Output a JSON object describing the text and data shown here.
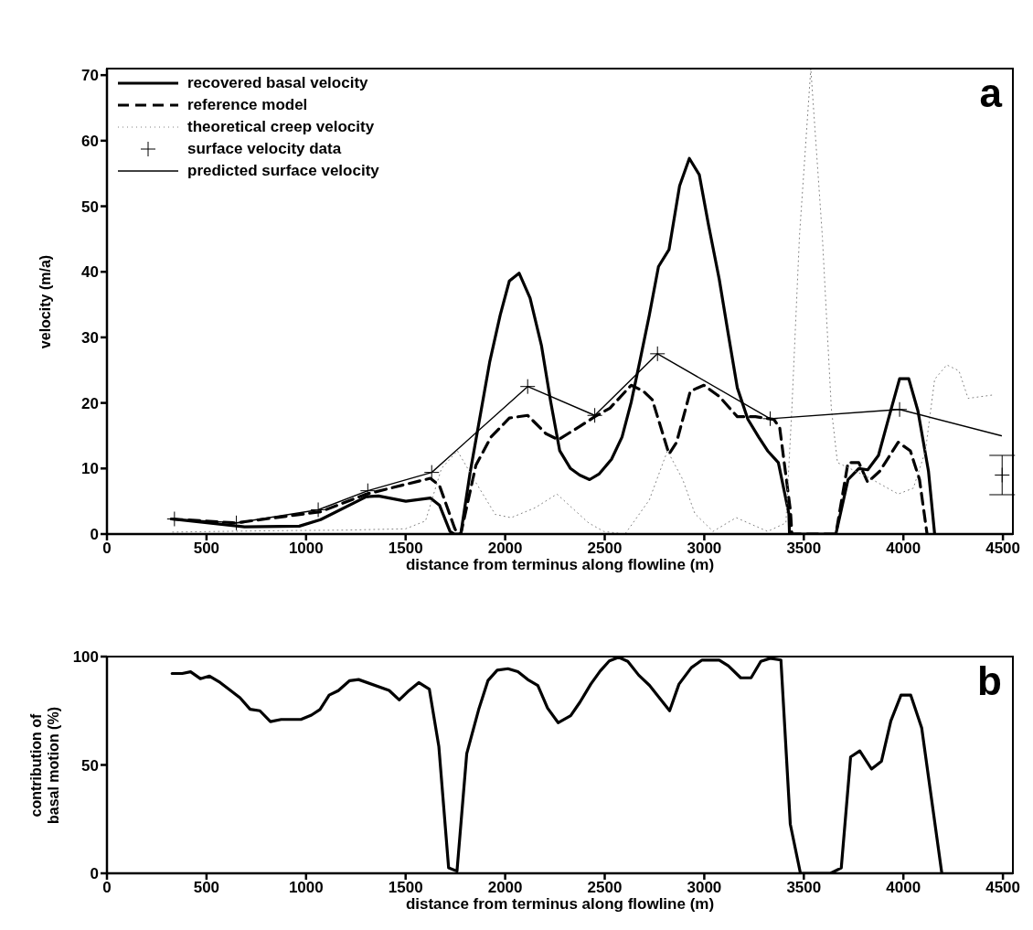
{
  "chart_data": [
    {
      "type": "line",
      "xlabel": "distance from terminus along flowline (m)",
      "ylabel": "velocity (m/a)",
      "xlim": [
        0,
        4550
      ],
      "xticks": [
        0,
        500,
        1000,
        1500,
        2000,
        2500,
        3000,
        3500,
        4000,
        4500
      ],
      "ylim": [
        0,
        71
      ],
      "yticks": [
        0,
        10,
        20,
        30,
        40,
        50,
        60,
        70
      ],
      "legend": "top left",
      "annotations": [
        "a"
      ],
      "series": [
        {
          "name": "recovered basal velocity",
          "color": "#000000",
          "line_style": "solid",
          "x": [
            324,
            691,
            966,
            1073,
            1303,
            1364,
            1501,
            1624,
            1670,
            1723,
            1745,
            1777,
            1823,
            1922,
            1975,
            2021,
            2070,
            2125,
            2182,
            2228,
            2274,
            2328,
            2374,
            2424,
            2473,
            2534,
            2587,
            2633,
            2678,
            2724,
            2770,
            2823,
            2876,
            2925,
            2975,
            3021,
            3075,
            3120,
            3166,
            3219,
            3273,
            3318,
            3372,
            3425,
            3428,
            3661,
            3722,
            3776,
            3821,
            3875,
            3928,
            3981,
            4027,
            4073,
            4126,
            4157
          ],
          "values": [
            2.3,
            1.1,
            1.2,
            2.2,
            5.7,
            5.8,
            5.0,
            5.5,
            4.4,
            0.4,
            0,
            0,
            9.2,
            26.2,
            33.4,
            38.6,
            39.8,
            36.0,
            28.8,
            20.3,
            12.7,
            10.0,
            9.0,
            8.3,
            9.2,
            11.4,
            14.8,
            20.1,
            26.6,
            33.4,
            40.8,
            43.4,
            53.1,
            57.3,
            54.8,
            47.2,
            38.9,
            30.6,
            22.3,
            17.5,
            14.8,
            12.7,
            10.9,
            3.1,
            0,
            0,
            8.3,
            10.0,
            9.8,
            12.0,
            17.9,
            23.7,
            23.7,
            18.8,
            9.6,
            0
          ]
        },
        {
          "name": "reference model",
          "color": "#000000",
          "line_style": "dashed",
          "x": [
            324,
            645,
            1073,
            1303,
            1624,
            1670,
            1746,
            1761,
            1777,
            1853,
            1929,
            2021,
            2113,
            2205,
            2267,
            2374,
            2450,
            2526,
            2633,
            2694,
            2739,
            2823,
            2861,
            2930,
            2998,
            3075,
            3166,
            3257,
            3349,
            3379,
            3433,
            3440,
            3661,
            3722,
            3776,
            3821,
            3882,
            3974,
            4035,
            4081,
            4119
          ],
          "values": [
            2.3,
            1.7,
            3.4,
            6.1,
            8.5,
            7.4,
            0.9,
            0,
            0,
            10.5,
            14.8,
            17.7,
            18.1,
            15.3,
            14.4,
            16.4,
            17.9,
            19.2,
            22.7,
            21.8,
            20.5,
            12.2,
            14.0,
            21.8,
            22.7,
            21.0,
            17.9,
            17.9,
            17.5,
            16.2,
            3.5,
            0,
            0,
            10.9,
            10.9,
            7.9,
            9.6,
            14.0,
            12.7,
            8.3,
            0
          ]
        },
        {
          "name": "theoretical creep velocity",
          "color": "#808080",
          "line_style": "dotted",
          "x": [
            330,
            800,
            1200,
            1500,
            1600,
            1680,
            1760,
            1850,
            1950,
            2030,
            2150,
            2260,
            2419,
            2495,
            2602,
            2724,
            2815,
            2892,
            2953,
            3044,
            3160,
            3318,
            3410,
            3440,
            3478,
            3535,
            3593,
            3638,
            3669,
            3821,
            3974,
            4050,
            4111,
            4157,
            4218,
            4279,
            4325,
            4446
          ],
          "values": [
            0.3,
            0.5,
            0.6,
            0.8,
            2,
            10,
            12.7,
            8,
            3,
            2.5,
            4,
            6.1,
            1.7,
            0.4,
            0,
            5.2,
            12.7,
            8.3,
            3.1,
            0.4,
            2.5,
            0.4,
            1.7,
            19.2,
            45.4,
            71,
            45.4,
            19.2,
            10.9,
            8.7,
            6.1,
            7,
            12.7,
            23.6,
            25.8,
            24.9,
            20.7,
            21.2
          ]
        },
        {
          "name": "surface velocity data",
          "type": "scatter",
          "color": "#000000",
          "marker": "cross",
          "x": [
            339,
            650,
            1061,
            1310,
            1631,
            2113,
            2450,
            2765,
            3331,
            3981
          ],
          "values": [
            2.3,
            1.7,
            3.7,
            6.6,
            9.4,
            22.5,
            18.1,
            27.5,
            17.6,
            19.0
          ]
        },
        {
          "name": "predicted surface velocity",
          "color": "#000000",
          "line_style": "solid",
          "x": [
            339,
            650,
            1061,
            1310,
            1631,
            2113,
            2450,
            2765,
            3331,
            3981,
            4492
          ],
          "values": [
            2.3,
            1.7,
            3.7,
            6.6,
            9.4,
            22.5,
            18.1,
            27.5,
            17.6,
            19.0,
            15.0
          ]
        },
        {
          "type": "scatter",
          "color": "#000000",
          "marker": "cross",
          "x": [
            4496
          ],
          "values": [
            9
          ],
          "errors": [
            [
              6,
              12
            ]
          ]
        }
      ]
    },
    {
      "type": "line",
      "xlabel": "distance from terminus along flowline (m)",
      "ylabel": "contribution of basal motion (%)",
      "xlim": [
        0,
        4550
      ],
      "xticks": [
        0,
        500,
        1000,
        1500,
        2000,
        2500,
        3000,
        3500,
        4000,
        4500
      ],
      "ylim": [
        0,
        100
      ],
      "yticks": [
        0,
        50,
        100
      ],
      "annotations": [
        "b"
      ],
      "series": [
        {
          "color": "#000000",
          "line_style": "solid",
          "x": [
            327,
            378,
            420,
            469,
            515,
            569,
            668,
            719,
            768,
            821,
            875,
            974,
            1027,
            1070,
            1116,
            1162,
            1219,
            1264,
            1417,
            1468,
            1517,
            1566,
            1619,
            1667,
            1716,
            1758,
            1807,
            1868,
            1914,
            1960,
            2014,
            2064,
            2113,
            2164,
            2213,
            2266,
            2329,
            2376,
            2430,
            2477,
            2523,
            2570,
            2616,
            2671,
            2725,
            2826,
            2873,
            2935,
            2989,
            3075,
            3121,
            3183,
            3235,
            3284,
            3331,
            3385,
            3432,
            3483,
            3634,
            3688,
            3735,
            3781,
            3840,
            3890,
            3937,
            3988,
            4037,
            4092,
            4193
          ],
          "values": [
            92.2,
            92.2,
            93,
            89.8,
            91,
            88,
            81,
            75.7,
            75,
            70,
            71,
            71,
            73,
            75.6,
            82.2,
            84.3,
            88.9,
            89.4,
            84.4,
            80,
            84.3,
            88,
            85,
            58.4,
            2.5,
            1,
            55.2,
            75.9,
            89,
            93.7,
            94.4,
            93,
            89.4,
            86.7,
            76.2,
            69.5,
            72.7,
            79,
            87.3,
            93.3,
            98,
            99.7,
            97.8,
            91.4,
            86.7,
            75,
            87.3,
            94.9,
            98.4,
            98.4,
            95.7,
            90.2,
            90.2,
            97.8,
            99.2,
            98.4,
            22.7,
            0,
            0,
            2.5,
            53.7,
            56.5,
            48.1,
            51.7,
            70.3,
            82.2,
            82.2,
            67.1,
            0
          ]
        }
      ]
    }
  ]
}
